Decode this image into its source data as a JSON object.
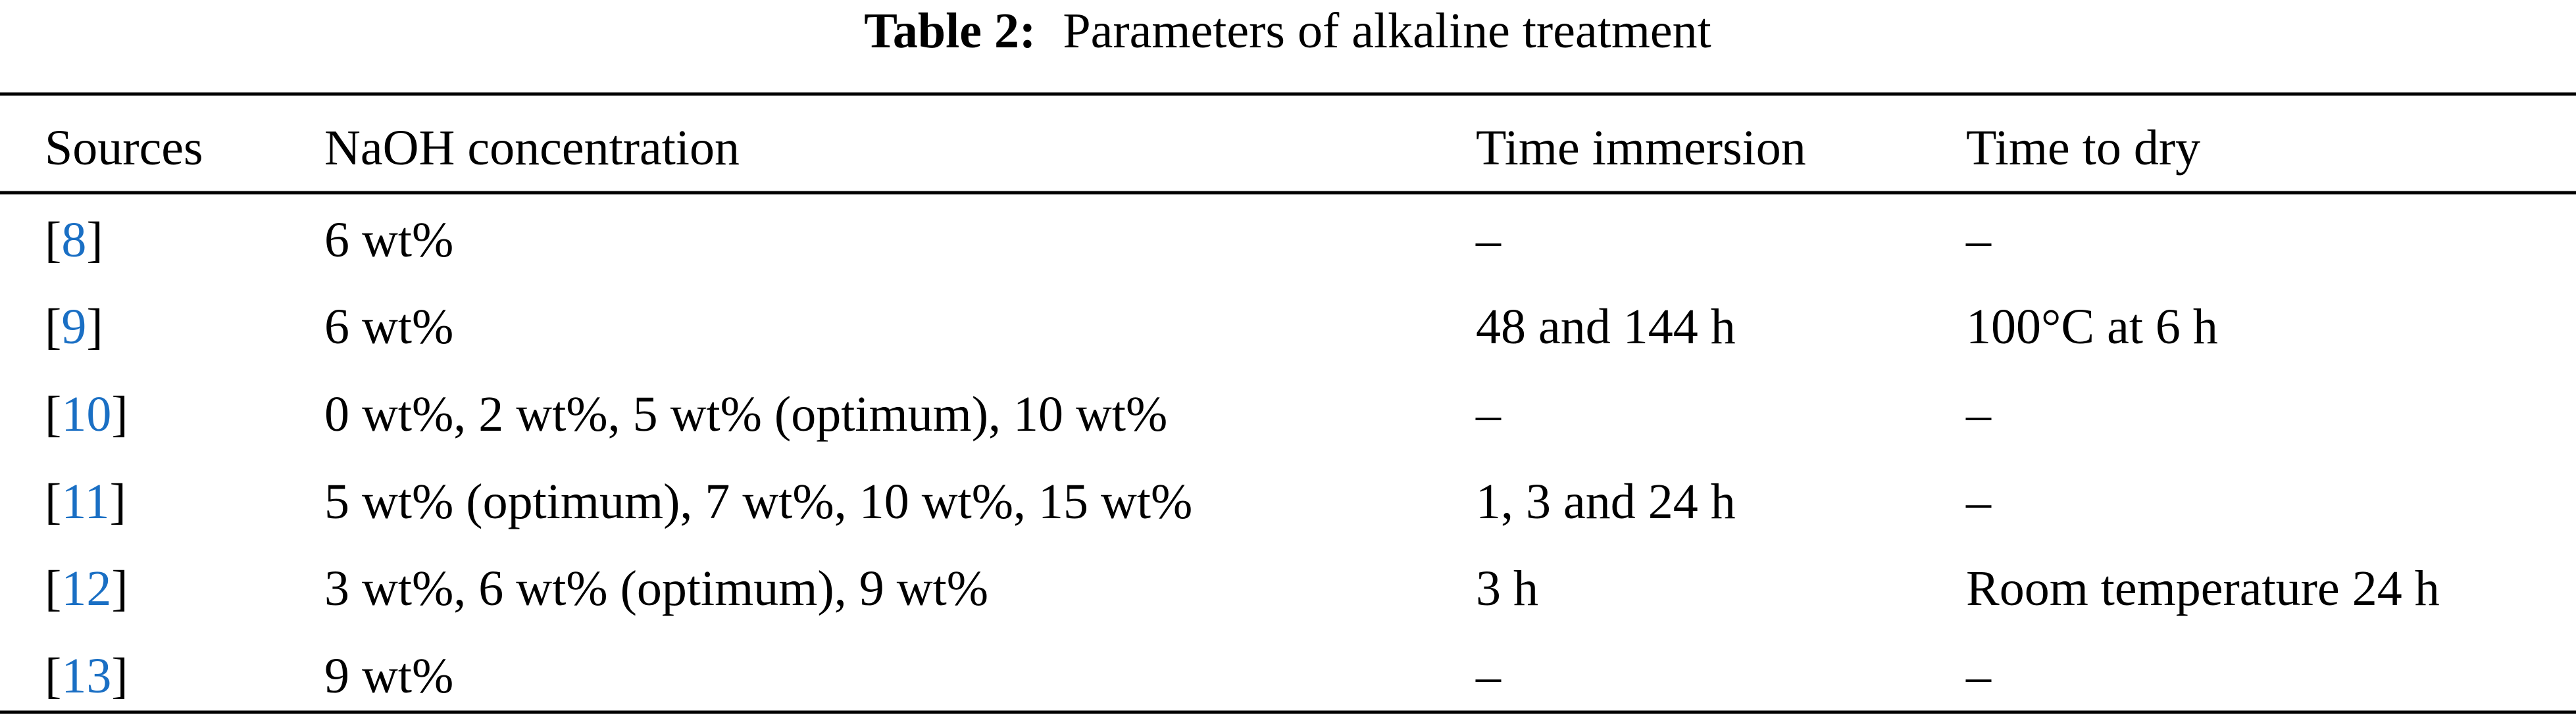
{
  "caption": {
    "label": "Table 2:",
    "text": "Parameters of alkaline treatment"
  },
  "table": {
    "header": [
      "Sources",
      "NaOH concentration",
      "Time immersion",
      "Time to dry"
    ],
    "rows": [
      {
        "source": {
          "open": "[",
          "ref": "8",
          "close": "]"
        },
        "naoh": "6 wt%",
        "immersion": "–",
        "dry": "–"
      },
      {
        "source": {
          "open": "[",
          "ref": "9",
          "close": "]"
        },
        "naoh": "6 wt%",
        "immersion": "48 and 144 h",
        "dry": "100°C at 6 h"
      },
      {
        "source": {
          "open": "[",
          "ref": "10",
          "close": "]"
        },
        "naoh": "0 wt%, 2 wt%, 5 wt% (optimum), 10 wt%",
        "immersion": "–",
        "dry": "–"
      },
      {
        "source": {
          "open": "[",
          "ref": "11",
          "close": "]"
        },
        "naoh": "5 wt% (optimum), 7 wt%, 10 wt%, 15 wt%",
        "immersion": "1, 3 and 24 h",
        "dry": "–"
      },
      {
        "source": {
          "open": "[",
          "ref": "12",
          "close": "]"
        },
        "naoh": "3 wt%, 6 wt% (optimum), 9 wt%",
        "immersion": "3 h",
        "dry": "Room temperature 24 h"
      },
      {
        "source": {
          "open": "[",
          "ref": "13",
          "close": "]"
        },
        "naoh": "9 wt%",
        "immersion": "–",
        "dry": "–"
      }
    ]
  }
}
